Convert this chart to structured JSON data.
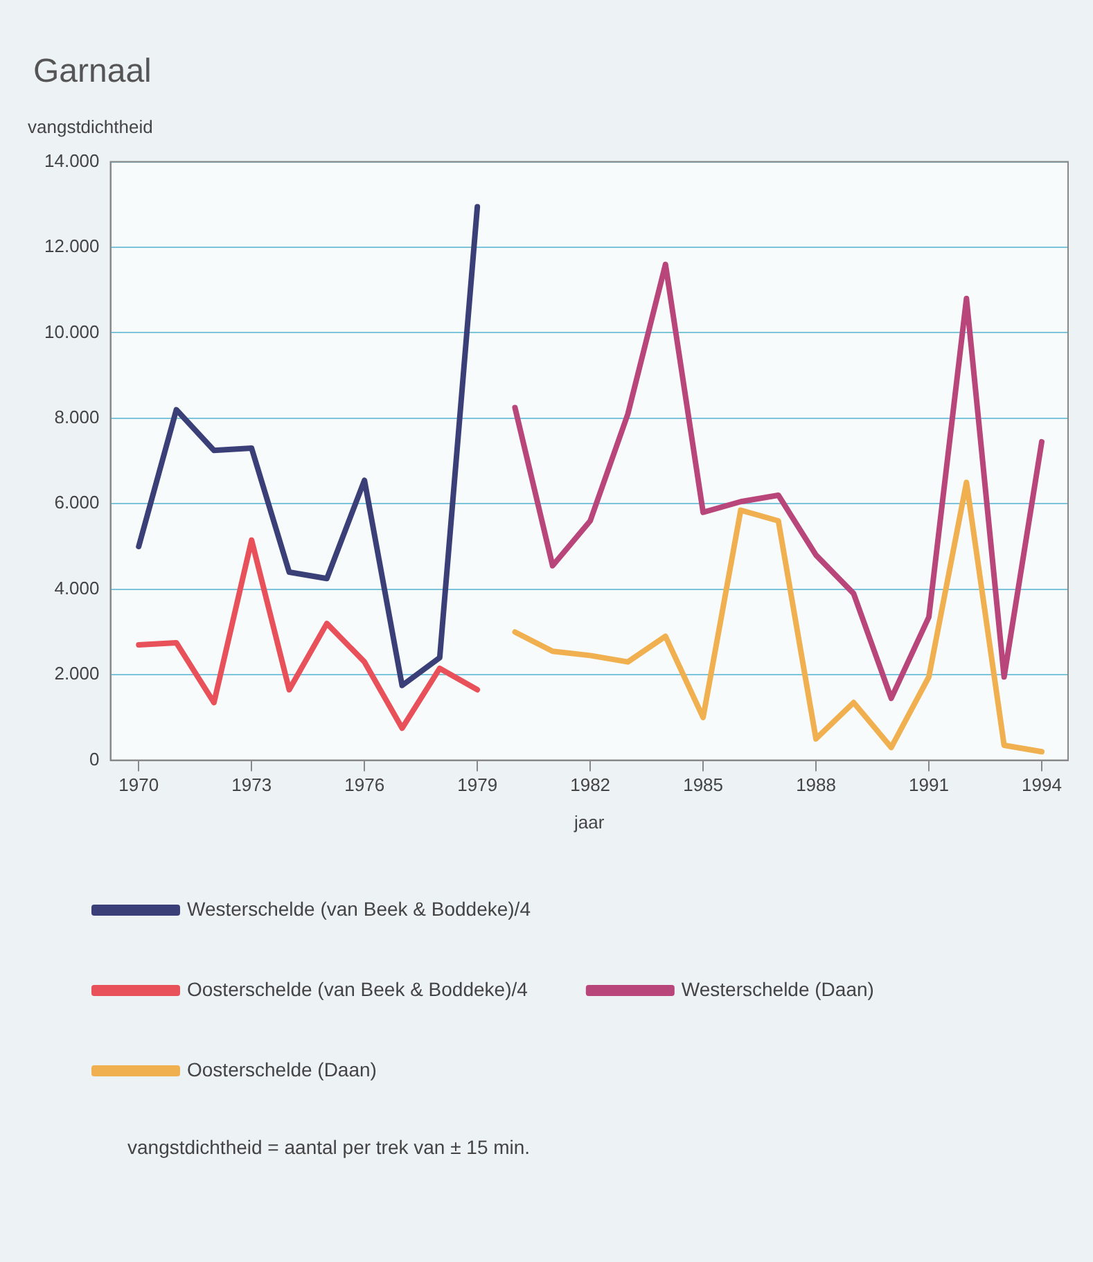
{
  "chart_data": {
    "type": "line",
    "title": "Garnaal",
    "ylabel": "vangstdichtheid",
    "xlabel": "jaar",
    "annotations": [
      "vangstdichtheid = aantal per trek van ± 15 min."
    ],
    "xlim": [
      1969.25,
      1994.7
    ],
    "xticks": [
      1970,
      1973,
      1976,
      1979,
      1982,
      1985,
      1988,
      1991,
      1994
    ],
    "ylim": [
      0,
      14000
    ],
    "yticks": [
      {
        "value": 0,
        "label": "0"
      },
      {
        "value": 2000,
        "label": "2.000"
      },
      {
        "value": 4000,
        "label": "4.000"
      },
      {
        "value": 6000,
        "label": "6.000"
      },
      {
        "value": 8000,
        "label": "8.000"
      },
      {
        "value": 10000,
        "label": "10.000"
      },
      {
        "value": 12000,
        "label": "12.000"
      },
      {
        "value": 14000,
        "label": "14.000"
      }
    ],
    "grid": "y",
    "legend": "bottom",
    "marker": "none",
    "line_style": "solid",
    "series": [
      {
        "name": "Westerschelde (van Beek & Boddeke)/4",
        "color": "#3b3f78",
        "x": [
          1970,
          1971,
          1972,
          1973,
          1974,
          1975,
          1976,
          1977,
          1978,
          1979
        ],
        "values": [
          5000,
          8200,
          7250,
          7300,
          4400,
          4250,
          6550,
          1750,
          2400,
          12950
        ]
      },
      {
        "name": "Oosterschelde (van Beek & Boddeke)/4",
        "color": "#e8505a",
        "x": [
          1970,
          1971,
          1972,
          1973,
          1974,
          1975,
          1976,
          1977,
          1978,
          1979
        ],
        "values": [
          2700,
          2750,
          1350,
          5150,
          1650,
          3200,
          2300,
          750,
          2150,
          1650
        ]
      },
      {
        "name": "Westerschelde (Daan)",
        "color": "#b8467a",
        "x": [
          1980,
          1981,
          1982,
          1983,
          1984,
          1985,
          1986,
          1987,
          1988,
          1989,
          1990,
          1991,
          1992,
          1993,
          1994
        ],
        "values": [
          8250,
          4550,
          5600,
          8100,
          11600,
          5800,
          6050,
          6200,
          4800,
          3900,
          1450,
          3350,
          10800,
          1950,
          7450
        ]
      },
      {
        "name": "Oosterschelde (Daan)",
        "color": "#f0b050",
        "x": [
          1980,
          1981,
          1982,
          1983,
          1984,
          1985,
          1986,
          1987,
          1988,
          1989,
          1990,
          1991,
          1992,
          1993,
          1994
        ],
        "values": [
          3000,
          2550,
          2450,
          2300,
          2900,
          1000,
          5850,
          5600,
          500,
          1350,
          300,
          1950,
          6500,
          350,
          200
        ]
      }
    ]
  }
}
